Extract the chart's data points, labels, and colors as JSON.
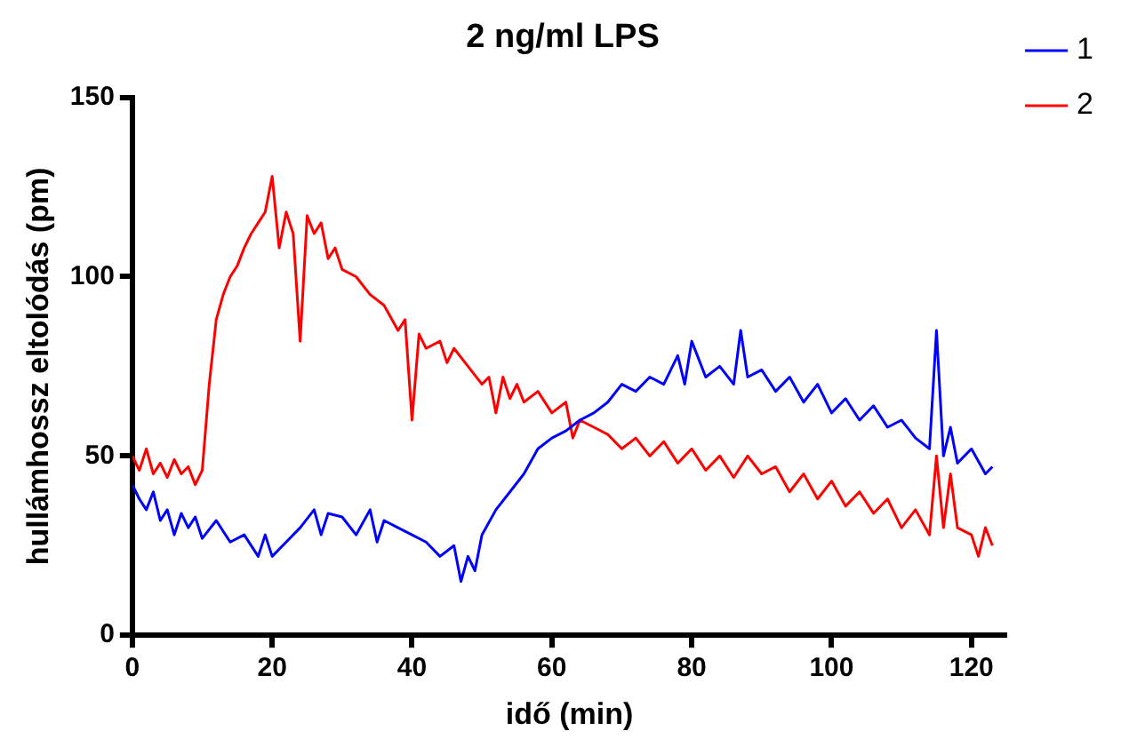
{
  "chart_data": {
    "type": "line",
    "title": "2 ng/ml LPS",
    "xlabel": "idő (min)",
    "ylabel": "hullámhossz eltolódás (pm)",
    "xlim": [
      0,
      125
    ],
    "xticks": [
      0,
      20,
      40,
      60,
      80,
      100,
      120
    ],
    "ylim": [
      0,
      150
    ],
    "yticks": [
      0,
      50,
      100,
      150
    ],
    "grid": false,
    "legend": "top right",
    "marker": "none",
    "line_style": "solid",
    "series": [
      {
        "name": "1",
        "color": "#0000ff",
        "x": [
          0,
          1,
          2,
          3,
          4,
          5,
          6,
          7,
          8,
          9,
          10,
          12,
          14,
          16,
          18,
          19,
          20,
          22,
          24,
          26,
          27,
          28,
          30,
          32,
          34,
          35,
          36,
          38,
          40,
          42,
          44,
          46,
          47,
          48,
          49,
          50,
          52,
          54,
          56,
          58,
          60,
          62,
          64,
          66,
          68,
          70,
          72,
          74,
          76,
          78,
          79,
          80,
          82,
          84,
          86,
          87,
          88,
          90,
          92,
          94,
          96,
          98,
          100,
          102,
          104,
          106,
          108,
          110,
          112,
          114,
          115,
          116,
          117,
          118,
          120,
          122,
          123
        ],
        "values": [
          42,
          38,
          35,
          40,
          32,
          35,
          28,
          34,
          30,
          33,
          27,
          32,
          26,
          28,
          22,
          28,
          22,
          26,
          30,
          35,
          28,
          34,
          33,
          28,
          35,
          26,
          32,
          30,
          28,
          26,
          22,
          25,
          15,
          22,
          18,
          28,
          35,
          40,
          45,
          52,
          55,
          57,
          60,
          62,
          65,
          70,
          68,
          72,
          70,
          78,
          70,
          82,
          72,
          75,
          70,
          85,
          72,
          74,
          68,
          72,
          65,
          70,
          62,
          66,
          60,
          64,
          58,
          60,
          55,
          52,
          85,
          50,
          58,
          48,
          52,
          45,
          47
        ]
      },
      {
        "name": "2",
        "color": "#ff0000",
        "x": [
          0,
          1,
          2,
          3,
          4,
          5,
          6,
          7,
          8,
          9,
          10,
          11,
          12,
          13,
          14,
          15,
          16,
          17,
          18,
          19,
          20,
          21,
          22,
          23,
          24,
          25,
          26,
          27,
          28,
          29,
          30,
          32,
          34,
          36,
          38,
          39,
          40,
          41,
          42,
          44,
          45,
          46,
          48,
          50,
          51,
          52,
          53,
          54,
          55,
          56,
          58,
          60,
          62,
          63,
          64,
          66,
          68,
          70,
          72,
          74,
          76,
          78,
          80,
          82,
          84,
          86,
          88,
          90,
          92,
          94,
          96,
          98,
          100,
          102,
          104,
          106,
          108,
          110,
          112,
          114,
          115,
          116,
          117,
          118,
          120,
          121,
          122,
          123
        ],
        "values": [
          50,
          46,
          52,
          45,
          48,
          44,
          49,
          45,
          47,
          42,
          46,
          70,
          88,
          95,
          100,
          103,
          108,
          112,
          115,
          118,
          128,
          108,
          118,
          112,
          82,
          117,
          112,
          115,
          105,
          108,
          102,
          100,
          95,
          92,
          85,
          88,
          60,
          84,
          80,
          82,
          76,
          80,
          75,
          70,
          72,
          62,
          72,
          66,
          70,
          65,
          68,
          62,
          65,
          55,
          60,
          58,
          56,
          52,
          55,
          50,
          54,
          48,
          52,
          46,
          50,
          44,
          50,
          45,
          47,
          40,
          45,
          38,
          43,
          36,
          40,
          34,
          38,
          30,
          35,
          28,
          50,
          30,
          45,
          30,
          28,
          22,
          30,
          25
        ]
      }
    ]
  }
}
